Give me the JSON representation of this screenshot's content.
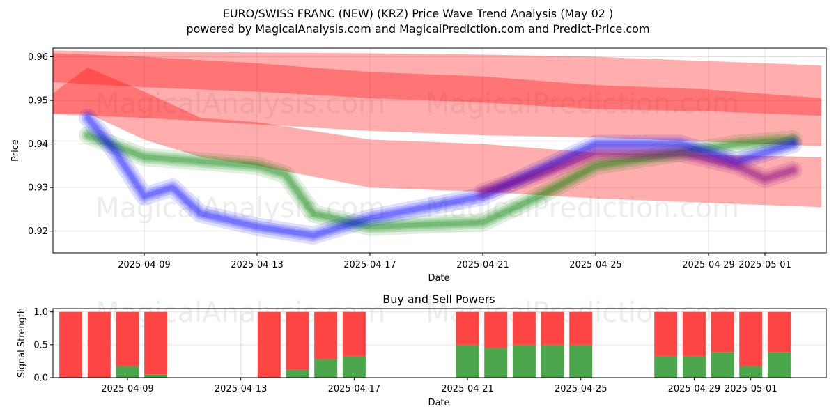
{
  "header": {
    "title": "EURO/SWISS FRANC (NEW) (KRZ) Price Wave Trend Analysis (May 02 )",
    "subtitle": "powered by MagicalAnalysis.com and MagicalPrediction.com and Predict-Price.com"
  },
  "watermarks": [
    "MagicalAnalysis.com",
    "MagicalPrediction.com"
  ],
  "colors": {
    "red": "#ff0000",
    "green": "#008000",
    "blue": "#0000ff",
    "purple": "#800080",
    "buy": "#4ca64c",
    "sell": "#ff4444"
  },
  "chart_data": [
    {
      "type": "area",
      "title": "",
      "xlabel": "Date",
      "ylabel": "Price",
      "ylim": [
        0.915,
        0.962
      ],
      "yticks": [
        "0.92",
        "0.93",
        "0.94",
        "0.95",
        "0.96"
      ],
      "xticks": [
        "2025-04-09",
        "2025-04-13",
        "2025-04-17",
        "2025-04-21",
        "2025-04-25",
        "2025-04-29",
        "2025-05-01"
      ],
      "grid": true,
      "series": [
        {
          "color": "red",
          "x": [
            "2025-04-05",
            "2025-04-09",
            "2025-04-13",
            "2025-04-17",
            "2025-04-21",
            "2025-04-25",
            "2025-04-29",
            "2025-05-03"
          ],
          "upper": [
            0.9615,
            0.9612,
            0.961,
            0.9608,
            0.9605,
            0.96,
            0.959,
            0.958
          ],
          "lower": [
            0.947,
            0.946,
            0.9445,
            0.943,
            0.942,
            0.9415,
            0.9405,
            0.9395
          ]
        },
        {
          "color": "red",
          "x": [
            "2025-04-05",
            "2025-04-09",
            "2025-04-13",
            "2025-04-17",
            "2025-04-21",
            "2025-04-25",
            "2025-04-29",
            "2025-05-03"
          ],
          "upper": [
            0.961,
            0.96,
            0.9585,
            0.9565,
            0.9555,
            0.9535,
            0.9525,
            0.9505
          ],
          "lower": [
            0.9545,
            0.953,
            0.952,
            0.9505,
            0.9495,
            0.948,
            0.9475,
            0.9465
          ]
        },
        {
          "color": "red",
          "x": [
            "2025-04-05",
            "2025-04-07",
            "2025-04-09",
            "2025-04-11",
            "2025-04-13",
            "2025-04-17",
            "2025-04-21",
            "2025-04-25",
            "2025-05-03"
          ],
          "upper": [
            0.948,
            0.9575,
            0.952,
            0.946,
            0.945,
            0.941,
            0.94,
            0.938,
            0.937
          ],
          "lower": [
            0.947,
            0.947,
            0.941,
            0.937,
            0.935,
            0.93,
            0.929,
            0.9275,
            0.9255
          ]
        },
        {
          "color": "green",
          "x": [
            "2025-04-07",
            "2025-04-09",
            "2025-04-11",
            "2025-04-13",
            "2025-04-14",
            "2025-04-15",
            "2025-04-17",
            "2025-04-21",
            "2025-04-23",
            "2025-04-25",
            "2025-04-28",
            "2025-04-30",
            "2025-05-02"
          ],
          "values": [
            0.942,
            0.937,
            0.936,
            0.935,
            0.933,
            0.924,
            0.921,
            0.922,
            0.928,
            0.935,
            0.938,
            0.94,
            0.941
          ]
        },
        {
          "color": "blue",
          "x": [
            "2025-04-07",
            "2025-04-08",
            "2025-04-09",
            "2025-04-10",
            "2025-04-11",
            "2025-04-13",
            "2025-04-15",
            "2025-04-17",
            "2025-04-21",
            "2025-04-23",
            "2025-04-25",
            "2025-04-28",
            "2025-04-30",
            "2025-05-02"
          ],
          "values": [
            0.946,
            0.938,
            0.928,
            0.93,
            0.924,
            0.921,
            0.919,
            0.923,
            0.928,
            0.934,
            0.94,
            0.94,
            0.936,
            0.94
          ]
        },
        {
          "color": "purple",
          "x": [
            "2025-04-21",
            "2025-04-23",
            "2025-04-25",
            "2025-04-28",
            "2025-04-30",
            "2025-05-01",
            "2025-05-02"
          ],
          "values": [
            0.929,
            0.933,
            0.938,
            0.938,
            0.935,
            0.932,
            0.934
          ]
        }
      ]
    },
    {
      "type": "bar",
      "title": "Buy and Sell Powers",
      "xlabel": "Date",
      "ylabel": "Signal Strength",
      "ylim": [
        0,
        1.05
      ],
      "yticks": [
        "0.0",
        "0.5",
        "1.0"
      ],
      "xticks": [
        "2025-04-09",
        "2025-04-13",
        "2025-04-17",
        "2025-04-21",
        "2025-04-25",
        "2025-04-29",
        "2025-05-01"
      ],
      "categories": [
        "2025-04-07",
        "2025-04-08",
        "2025-04-09",
        "2025-04-10",
        "2025-04-14",
        "2025-04-15",
        "2025-04-16",
        "2025-04-17",
        "2025-04-21",
        "2025-04-22",
        "2025-04-23",
        "2025-04-24",
        "2025-04-25",
        "2025-04-28",
        "2025-04-29",
        "2025-04-30",
        "2025-05-01",
        "2025-05-02"
      ],
      "series": [
        {
          "name": "Buy",
          "values": [
            0.0,
            0.0,
            0.17,
            0.05,
            0.0,
            0.12,
            0.28,
            0.33,
            0.5,
            0.45,
            0.5,
            0.5,
            0.5,
            0.33,
            0.33,
            0.39,
            0.17,
            0.39
          ]
        },
        {
          "name": "Sell",
          "values": [
            1.0,
            1.0,
            0.83,
            0.95,
            1.0,
            0.88,
            0.72,
            0.67,
            0.5,
            0.55,
            0.5,
            0.5,
            0.5,
            0.67,
            0.67,
            0.61,
            0.83,
            0.61
          ]
        }
      ]
    }
  ]
}
